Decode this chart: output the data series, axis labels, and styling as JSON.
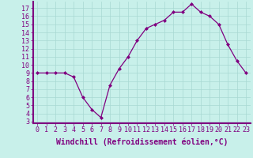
{
  "hours": [
    0,
    1,
    2,
    3,
    4,
    5,
    6,
    7,
    8,
    9,
    10,
    11,
    12,
    13,
    14,
    15,
    16,
    17,
    18,
    19,
    20,
    21,
    22,
    23
  ],
  "values": [
    9,
    9,
    9,
    9,
    8.5,
    6,
    4.5,
    3.5,
    7.5,
    9.5,
    11,
    13,
    14.5,
    15,
    15.5,
    16.5,
    16.5,
    17.5,
    16.5,
    16,
    15,
    12.5,
    10.5,
    9
  ],
  "line_color": "#800080",
  "marker_color": "#800080",
  "background_color": "#c8f0ea",
  "grid_color": "#a8d8d2",
  "xlabel": "Windchill (Refroidissement éolien,°C)",
  "ylim": [
    2.8,
    17.8
  ],
  "xlim": [
    -0.5,
    23.5
  ],
  "yticks": [
    3,
    4,
    5,
    6,
    7,
    8,
    9,
    10,
    11,
    12,
    13,
    14,
    15,
    16,
    17
  ],
  "xticks": [
    0,
    1,
    2,
    3,
    4,
    5,
    6,
    7,
    8,
    9,
    10,
    11,
    12,
    13,
    14,
    15,
    16,
    17,
    18,
    19,
    20,
    21,
    22,
    23
  ],
  "tick_label_fontsize": 6,
  "xlabel_fontsize": 7,
  "border_color": "#800080",
  "spine_bottom_color": "#800080",
  "spine_left_color": "#800080"
}
